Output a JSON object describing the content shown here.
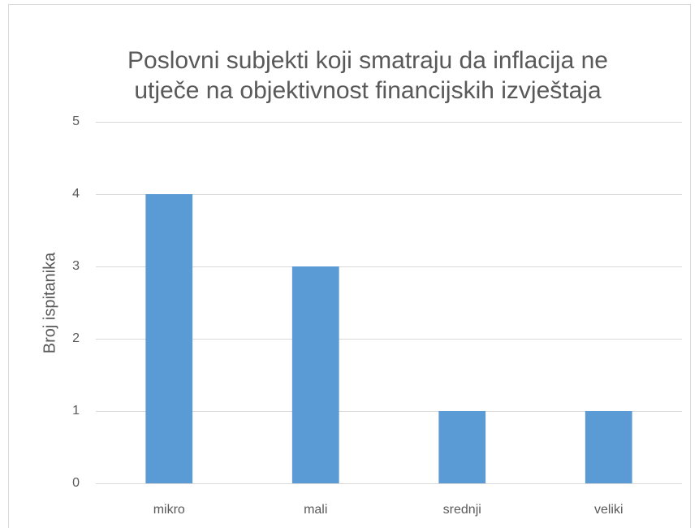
{
  "chart_data": {
    "type": "bar",
    "title": [
      "Poslovni subjekti koji smatraju da inflacija ne",
      "utječe na objektivnost financijskih izvještaja"
    ],
    "y_label": "Broj ispitanika",
    "categories": [
      "mikro",
      "mali",
      "srednji",
      "veliki"
    ],
    "values": [
      4,
      3,
      1,
      1
    ],
    "color": "#5b9bd5",
    "ylim": [
      0,
      5
    ],
    "yticks": [
      0,
      1,
      2,
      3,
      4,
      5
    ],
    "grid": true
  }
}
